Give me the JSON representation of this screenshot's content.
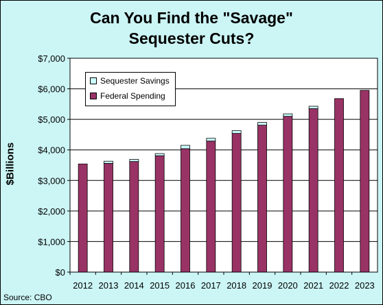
{
  "chart_data": {
    "type": "bar",
    "stacked": true,
    "title_line1": "Can You Find the \"Savage\"",
    "title_line2": "Sequester Cuts?",
    "ylabel": "$Billions",
    "xlabel": "",
    "ylim": [
      0,
      7000
    ],
    "yticks": [
      "$0",
      "$1,000",
      "$2,000",
      "$3,000",
      "$4,000",
      "$5,000",
      "$6,000",
      "$7,000"
    ],
    "ytick_values": [
      0,
      1000,
      2000,
      3000,
      4000,
      5000,
      6000,
      7000
    ],
    "categories": [
      "2012",
      "2013",
      "2014",
      "2015",
      "2016",
      "2017",
      "2018",
      "2019",
      "2020",
      "2021",
      "2022",
      "2023"
    ],
    "series": [
      {
        "name": "Federal Spending",
        "color": "#993366",
        "values": [
          3540,
          3560,
          3620,
          3810,
          4040,
          4290,
          4540,
          4810,
          5100,
          5350,
          5680,
          5950
        ]
      },
      {
        "name": "Sequester Savings",
        "color": "#ccffff",
        "values": [
          0,
          70,
          70,
          70,
          110,
          90,
          90,
          90,
          80,
          80,
          0,
          0
        ]
      }
    ],
    "legend_position": "top-left",
    "grid": true,
    "source": "Source: CBO"
  }
}
